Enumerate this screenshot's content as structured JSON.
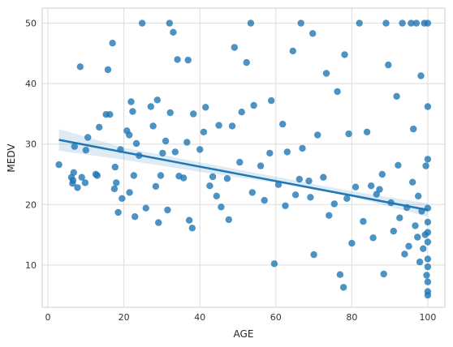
{
  "chart_data": {
    "type": "scatter",
    "title": "",
    "xlabel": "AGE",
    "ylabel": "MEDV",
    "xlim": [
      -1.5,
      104.5
    ],
    "ylim": [
      3.0,
      52.5
    ],
    "x_ticks": [
      0,
      20,
      40,
      60,
      80,
      100
    ],
    "x_tick_labels": [
      "0",
      "20",
      "40",
      "60",
      "80",
      "100"
    ],
    "y_ticks": [
      10,
      20,
      30,
      40,
      50
    ],
    "y_tick_labels": [
      "10",
      "20",
      "30",
      "40",
      "50"
    ],
    "grid": true,
    "legend": "none",
    "colors": {
      "points": "#1f77b4",
      "line": "#1f77b4",
      "band": "#1f77b4",
      "grid": "#dddddd",
      "axis": "#cccccc"
    },
    "points": [
      {
        "x": 2.9,
        "y": 26.6
      },
      {
        "x": 6.2,
        "y": 24.5
      },
      {
        "x": 6.5,
        "y": 23.5
      },
      {
        "x": 6.6,
        "y": 24.0
      },
      {
        "x": 6.8,
        "y": 25.3
      },
      {
        "x": 7.0,
        "y": 29.6
      },
      {
        "x": 7.8,
        "y": 22.8
      },
      {
        "x": 8.5,
        "y": 42.8
      },
      {
        "x": 8.9,
        "y": 24.5
      },
      {
        "x": 9.8,
        "y": 23.6
      },
      {
        "x": 10.0,
        "y": 29.0
      },
      {
        "x": 10.5,
        "y": 31.1
      },
      {
        "x": 12.6,
        "y": 25.0
      },
      {
        "x": 13.0,
        "y": 24.8
      },
      {
        "x": 13.5,
        "y": 32.8
      },
      {
        "x": 15.3,
        "y": 34.9
      },
      {
        "x": 15.8,
        "y": 42.3
      },
      {
        "x": 16.3,
        "y": 34.9
      },
      {
        "x": 17.0,
        "y": 46.7
      },
      {
        "x": 17.5,
        "y": 22.6
      },
      {
        "x": 17.7,
        "y": 26.2
      },
      {
        "x": 18.0,
        "y": 23.6
      },
      {
        "x": 18.5,
        "y": 18.7
      },
      {
        "x": 19.1,
        "y": 29.1
      },
      {
        "x": 19.5,
        "y": 21.0
      },
      {
        "x": 20.8,
        "y": 32.2
      },
      {
        "x": 21.4,
        "y": 31.5
      },
      {
        "x": 21.5,
        "y": 22.0
      },
      {
        "x": 21.9,
        "y": 37.0
      },
      {
        "x": 22.3,
        "y": 35.4
      },
      {
        "x": 22.6,
        "y": 24.8
      },
      {
        "x": 22.9,
        "y": 18.0
      },
      {
        "x": 23.3,
        "y": 30.1
      },
      {
        "x": 24.0,
        "y": 28.1
      },
      {
        "x": 24.8,
        "y": 50.0
      },
      {
        "x": 25.8,
        "y": 19.4
      },
      {
        "x": 27.1,
        "y": 36.2
      },
      {
        "x": 27.7,
        "y": 33.0
      },
      {
        "x": 28.4,
        "y": 23.0
      },
      {
        "x": 28.8,
        "y": 37.3
      },
      {
        "x": 29.1,
        "y": 17.0
      },
      {
        "x": 29.7,
        "y": 24.8
      },
      {
        "x": 30.2,
        "y": 28.5
      },
      {
        "x": 31.0,
        "y": 30.5
      },
      {
        "x": 31.5,
        "y": 19.1
      },
      {
        "x": 32.0,
        "y": 50.0
      },
      {
        "x": 32.2,
        "y": 35.2
      },
      {
        "x": 33.0,
        "y": 48.5
      },
      {
        "x": 33.5,
        "y": 28.7
      },
      {
        "x": 34.1,
        "y": 44.0
      },
      {
        "x": 34.5,
        "y": 24.7
      },
      {
        "x": 35.7,
        "y": 24.4
      },
      {
        "x": 36.6,
        "y": 30.3
      },
      {
        "x": 36.9,
        "y": 43.9
      },
      {
        "x": 37.2,
        "y": 17.4
      },
      {
        "x": 38.0,
        "y": 16.1
      },
      {
        "x": 38.3,
        "y": 35.0
      },
      {
        "x": 40.0,
        "y": 29.1
      },
      {
        "x": 41.0,
        "y": 32.0
      },
      {
        "x": 41.5,
        "y": 36.1
      },
      {
        "x": 42.6,
        "y": 23.1
      },
      {
        "x": 43.4,
        "y": 24.6
      },
      {
        "x": 44.4,
        "y": 21.4
      },
      {
        "x": 45.0,
        "y": 33.1
      },
      {
        "x": 45.6,
        "y": 19.6
      },
      {
        "x": 47.2,
        "y": 24.3
      },
      {
        "x": 47.6,
        "y": 17.5
      },
      {
        "x": 48.5,
        "y": 33.0
      },
      {
        "x": 49.1,
        "y": 46.0
      },
      {
        "x": 50.5,
        "y": 27.0
      },
      {
        "x": 51.0,
        "y": 35.3
      },
      {
        "x": 52.3,
        "y": 43.5
      },
      {
        "x": 53.4,
        "y": 50.0
      },
      {
        "x": 53.8,
        "y": 22.0
      },
      {
        "x": 54.2,
        "y": 36.4
      },
      {
        "x": 56.0,
        "y": 26.4
      },
      {
        "x": 57.0,
        "y": 20.7
      },
      {
        "x": 58.4,
        "y": 28.5
      },
      {
        "x": 58.8,
        "y": 37.2
      },
      {
        "x": 59.6,
        "y": 10.2
      },
      {
        "x": 60.7,
        "y": 23.3
      },
      {
        "x": 61.8,
        "y": 33.3
      },
      {
        "x": 62.5,
        "y": 19.8
      },
      {
        "x": 63.0,
        "y": 28.7
      },
      {
        "x": 64.5,
        "y": 45.4
      },
      {
        "x": 65.2,
        "y": 21.6
      },
      {
        "x": 66.2,
        "y": 24.2
      },
      {
        "x": 66.6,
        "y": 50.0
      },
      {
        "x": 67.0,
        "y": 29.3
      },
      {
        "x": 68.7,
        "y": 23.9
      },
      {
        "x": 69.1,
        "y": 21.2
      },
      {
        "x": 69.7,
        "y": 48.3
      },
      {
        "x": 70.0,
        "y": 11.7
      },
      {
        "x": 71.0,
        "y": 31.5
      },
      {
        "x": 72.5,
        "y": 24.5
      },
      {
        "x": 73.3,
        "y": 41.7
      },
      {
        "x": 74.0,
        "y": 18.2
      },
      {
        "x": 75.4,
        "y": 20.1
      },
      {
        "x": 76.2,
        "y": 38.7
      },
      {
        "x": 76.9,
        "y": 8.4
      },
      {
        "x": 77.8,
        "y": 6.3
      },
      {
        "x": 78.1,
        "y": 44.8
      },
      {
        "x": 78.7,
        "y": 21.0
      },
      {
        "x": 79.2,
        "y": 31.7
      },
      {
        "x": 80.0,
        "y": 13.6
      },
      {
        "x": 81.0,
        "y": 22.9
      },
      {
        "x": 82.0,
        "y": 50.0
      },
      {
        "x": 83.0,
        "y": 17.2
      },
      {
        "x": 84.0,
        "y": 32.0
      },
      {
        "x": 85.1,
        "y": 23.1
      },
      {
        "x": 85.6,
        "y": 14.5
      },
      {
        "x": 86.5,
        "y": 21.7
      },
      {
        "x": 87.3,
        "y": 22.5
      },
      {
        "x": 88.0,
        "y": 25.0
      },
      {
        "x": 88.4,
        "y": 8.5
      },
      {
        "x": 89.0,
        "y": 50.0
      },
      {
        "x": 89.6,
        "y": 43.1
      },
      {
        "x": 90.3,
        "y": 20.3
      },
      {
        "x": 91.0,
        "y": 15.6
      },
      {
        "x": 91.8,
        "y": 37.9
      },
      {
        "x": 92.2,
        "y": 26.5
      },
      {
        "x": 92.6,
        "y": 17.8
      },
      {
        "x": 93.3,
        "y": 50.0
      },
      {
        "x": 93.9,
        "y": 11.8
      },
      {
        "x": 94.5,
        "y": 19.5
      },
      {
        "x": 95.0,
        "y": 13.1
      },
      {
        "x": 95.6,
        "y": 50.0
      },
      {
        "x": 96.0,
        "y": 23.7
      },
      {
        "x": 96.2,
        "y": 32.5
      },
      {
        "x": 96.7,
        "y": 16.5
      },
      {
        "x": 97.0,
        "y": 50.0
      },
      {
        "x": 97.3,
        "y": 14.6
      },
      {
        "x": 97.5,
        "y": 21.4
      },
      {
        "x": 97.9,
        "y": 10.5
      },
      {
        "x": 98.2,
        "y": 41.3
      },
      {
        "x": 98.4,
        "y": 18.9
      },
      {
        "x": 98.8,
        "y": 12.7
      },
      {
        "x": 99.1,
        "y": 50.0
      },
      {
        "x": 99.3,
        "y": 15.0
      },
      {
        "x": 99.5,
        "y": 26.4
      },
      {
        "x": 99.7,
        "y": 8.3
      },
      {
        "x": 100.0,
        "y": 50.0
      },
      {
        "x": 100.0,
        "y": 36.2
      },
      {
        "x": 100.0,
        "y": 27.5
      },
      {
        "x": 100.0,
        "y": 19.4
      },
      {
        "x": 100.0,
        "y": 17.1
      },
      {
        "x": 100.0,
        "y": 15.4
      },
      {
        "x": 100.0,
        "y": 13.8
      },
      {
        "x": 100.0,
        "y": 11.0
      },
      {
        "x": 100.0,
        "y": 9.7
      },
      {
        "x": 100.0,
        "y": 7.2
      },
      {
        "x": 100.0,
        "y": 5.6
      },
      {
        "x": 100.0,
        "y": 5.0
      }
    ],
    "regression": {
      "x": [
        2.9,
        100.0
      ],
      "y": [
        30.7,
        19.1
      ]
    },
    "confidence_band": {
      "x": [
        2.9,
        20,
        40,
        60,
        80,
        100
      ],
      "upper": [
        32.5,
        29.4,
        27.0,
        24.6,
        22.2,
        20.2
      ],
      "lower": [
        28.9,
        27.4,
        25.4,
        23.6,
        21.3,
        18.0
      ]
    }
  }
}
